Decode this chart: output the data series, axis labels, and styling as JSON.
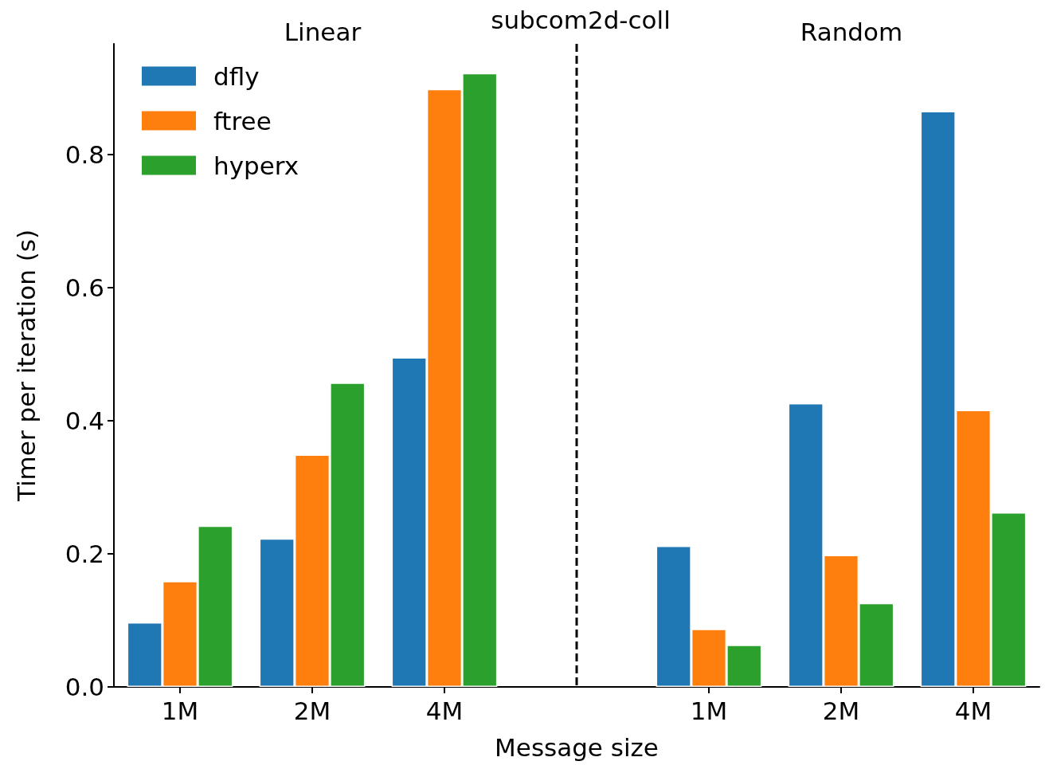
{
  "chart_data": {
    "type": "bar",
    "title": "subcom2d-coll",
    "xlabel": "Message size",
    "ylabel": "Timer per iteration (s)",
    "annotations": [
      "Linear",
      "Random"
    ],
    "categories": [
      "1M",
      "2M",
      "4M",
      null,
      "1M",
      "2M",
      "4M"
    ],
    "series": [
      {
        "name": "dfly",
        "color": "#1f77b4",
        "values": [
          0.097,
          0.223,
          0.495,
          null,
          0.212,
          0.426,
          0.865
        ]
      },
      {
        "name": "ftree",
        "color": "#ff7f0e",
        "values": [
          0.159,
          0.349,
          0.898,
          null,
          0.087,
          0.198,
          0.416
        ]
      },
      {
        "name": "hyperx",
        "color": "#2ca02c",
        "values": [
          0.242,
          0.457,
          0.922,
          null,
          0.063,
          0.126,
          0.262
        ]
      }
    ],
    "ylim": [
      0,
      0.966
    ],
    "yticks": [
      {
        "value": 0,
        "label": "0.0"
      },
      {
        "value": 0.2,
        "label": "0.2"
      },
      {
        "value": 0.4,
        "label": "0.4"
      },
      {
        "value": 0.6,
        "label": "0.6"
      },
      {
        "value": 0.8,
        "label": "0.8"
      }
    ],
    "legend": "top left"
  }
}
